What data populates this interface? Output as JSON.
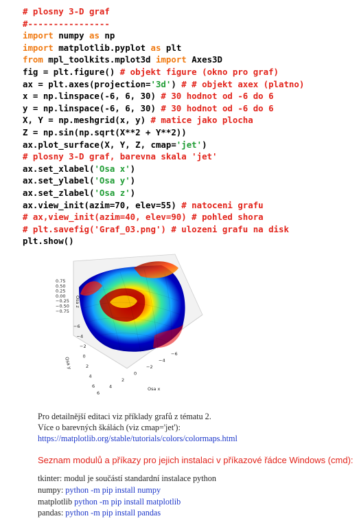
{
  "code_lines": [
    [
      {
        "t": "# plosny 3-D graf",
        "c": "c"
      }
    ],
    [
      {
        "t": "#----------------",
        "c": "c"
      }
    ],
    [
      {
        "t": "import",
        "c": "k"
      },
      {
        "t": " numpy ",
        "c": ""
      },
      {
        "t": "as",
        "c": "k"
      },
      {
        "t": " np",
        "c": ""
      }
    ],
    [
      {
        "t": "import",
        "c": "k"
      },
      {
        "t": " matplotlib.pyplot ",
        "c": ""
      },
      {
        "t": "as",
        "c": "k"
      },
      {
        "t": " plt",
        "c": ""
      }
    ],
    [
      {
        "t": "from",
        "c": "k"
      },
      {
        "t": " mpl_toolkits.mplot3d ",
        "c": ""
      },
      {
        "t": "import",
        "c": "k"
      },
      {
        "t": " Axes3D",
        "c": ""
      }
    ],
    [
      {
        "t": "fig = plt.figure() ",
        "c": ""
      },
      {
        "t": "# objekt figure (okno pro graf)",
        "c": "c"
      }
    ],
    [
      {
        "t": "ax = plt.axes(projection=",
        "c": ""
      },
      {
        "t": "'3d'",
        "c": "s"
      },
      {
        "t": ") ",
        "c": ""
      },
      {
        "t": "# # objekt axex (platno)",
        "c": "c"
      }
    ],
    [
      {
        "t": "x = np.linspace(-6, 6, 30) ",
        "c": ""
      },
      {
        "t": "# 30 hodnot od -6 do 6",
        "c": "c"
      }
    ],
    [
      {
        "t": "y = np.linspace(-6, 6, 30) ",
        "c": ""
      },
      {
        "t": "# 30 hodnot od -6 do 6",
        "c": "c"
      }
    ],
    [
      {
        "t": "X, Y = np.meshgrid(x, y) ",
        "c": ""
      },
      {
        "t": "# matice jako plocha",
        "c": "c"
      }
    ],
    [
      {
        "t": "Z = np.sin(np.sqrt(X**2 + Y**2))",
        "c": ""
      }
    ],
    [
      {
        "t": "ax.plot_surface(X, Y, Z, cmap=",
        "c": ""
      },
      {
        "t": "'jet'",
        "c": "s"
      },
      {
        "t": ")",
        "c": ""
      }
    ],
    [
      {
        "t": "# plosny 3-D graf, barevna skala 'jet'",
        "c": "c"
      }
    ],
    [
      {
        "t": "ax.set_xlabel(",
        "c": ""
      },
      {
        "t": "'Osa x'",
        "c": "s"
      },
      {
        "t": ")",
        "c": ""
      }
    ],
    [
      {
        "t": "ax.set_ylabel(",
        "c": ""
      },
      {
        "t": "'Osa y'",
        "c": "s"
      },
      {
        "t": ")",
        "c": ""
      }
    ],
    [
      {
        "t": "ax.set_zlabel(",
        "c": ""
      },
      {
        "t": "'Osa z'",
        "c": "s"
      },
      {
        "t": ")",
        "c": ""
      }
    ],
    [
      {
        "t": "ax.view_init(azim=70, elev=55) ",
        "c": ""
      },
      {
        "t": "# natoceni grafu",
        "c": "c"
      }
    ],
    [
      {
        "t": "# ax,view_init(azim=40, elev=90) # pohled shora",
        "c": "c"
      }
    ],
    [
      {
        "t": "# plt.savefig('Graf_03.png') # ulozeni grafu na disk",
        "c": "c"
      }
    ],
    [
      {
        "t": "plt.show()",
        "c": ""
      }
    ]
  ],
  "plot": {
    "z_ticks": [
      "0.75",
      "0.50",
      "0.25",
      "0.00",
      "−0.25",
      "−0.50",
      "−0.75"
    ],
    "y_ticks": [
      "−6",
      "−4",
      "−2",
      "0",
      "2",
      "4",
      "6"
    ],
    "x_ticks": [
      "6",
      "4",
      "2",
      "0",
      "−2",
      "−4",
      "−6"
    ],
    "xlabel": "Osa x",
    "ylabel": "Osa y",
    "zlabel": "Osa z",
    "colormap": "jet"
  },
  "notes": {
    "line1": "Pro detailnější editaci viz příklady grafů z tématu 2.",
    "line2": "Více o barevných škálách (viz cmap='jet'):",
    "link": "https://matplotlib.org/stable/tutorials/colors/colormaps.html"
  },
  "section_title": "Seznam modulů a příkazy pro jejich instalaci v příkazové řádce Windows (cmd):",
  "modules": [
    {
      "label": "tkinter: modul je součástí standardní instalace python",
      "cmd": ""
    },
    {
      "label": "numpy: ",
      "cmd": "python -m pip install numpy"
    },
    {
      "label": "matplotlib ",
      "cmd": "python -m pip install matplotlib"
    },
    {
      "label": "pandas: ",
      "cmd": "python -m pip install pandas"
    }
  ],
  "colors": {
    "comment": "#e2231a",
    "keyword": "#f07a12",
    "string": "#1e9c33",
    "link": "#1a35c9"
  }
}
